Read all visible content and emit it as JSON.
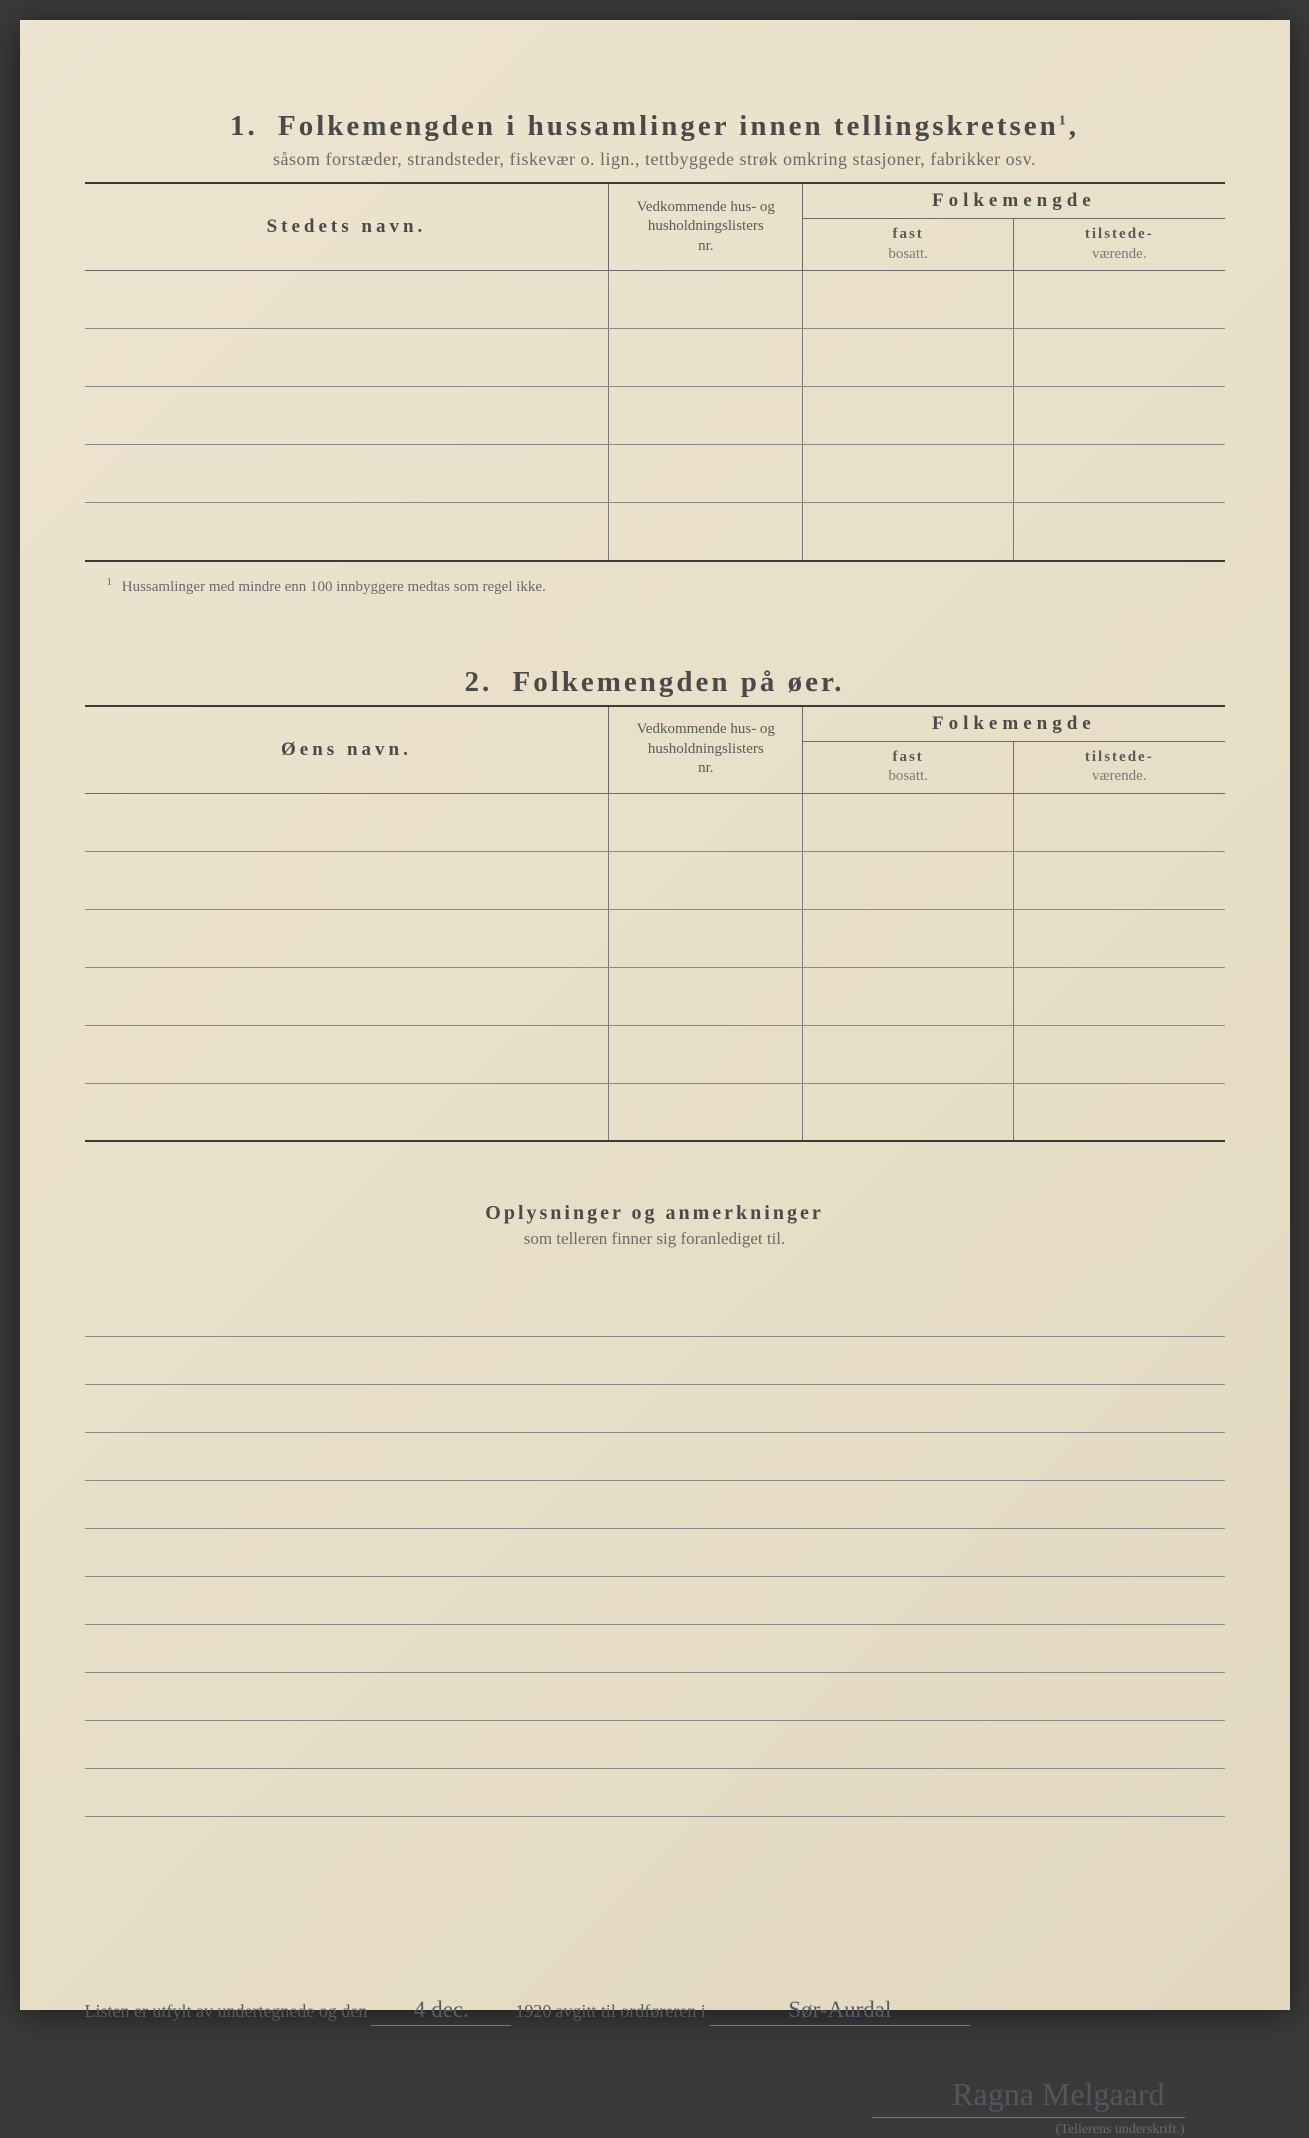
{
  "section1": {
    "number": "1.",
    "title": "Folkemengden i hussamlinger innen tellingskretsen",
    "title_sup": "1",
    "subtitle": "såsom forstæder, strandsteder, fiskevær o. lign., tettbyggede strøk omkring stasjoner, fabrikker osv.",
    "headers": {
      "name": "Stedets navn.",
      "nr_line1": "Vedkommende hus- og",
      "nr_line2": "husholdningslisters",
      "nr_line3": "nr.",
      "folk": "Folkemengde",
      "fast_bold": "fast",
      "fast_light": "bosatt.",
      "til_bold": "tilstede-",
      "til_light": "værende."
    },
    "rows": 5,
    "footnote_num": "1",
    "footnote": "Hussamlinger med mindre enn 100 innbyggere medtas som regel ikke."
  },
  "section2": {
    "number": "2.",
    "title": "Folkemengden på øer.",
    "headers": {
      "name": "Øens navn.",
      "nr_line1": "Vedkommende hus- og",
      "nr_line2": "husholdningslisters",
      "nr_line3": "nr.",
      "folk": "Folkemengde",
      "fast_bold": "fast",
      "fast_light": "bosatt.",
      "til_bold": "tilstede-",
      "til_light": "værende."
    },
    "rows": 6
  },
  "section3": {
    "title": "Oplysninger og anmerkninger",
    "subtitle": "som telleren finner sig foranlediget til.",
    "lines": 11
  },
  "signoff": {
    "pre": "Listen er utfylt av undertegnede og den",
    "date_written": "4 dec.",
    "year": "1920",
    "mid": "avgitt til ordføreren i",
    "place_written": "Sør-Aurdal",
    "signature": "Ragna Melgaard",
    "caption": "(Tellerens underskrift.)"
  },
  "colors": {
    "paper_bg": "#e8dfc8",
    "text_main": "#4a4a4a",
    "text_light": "#6a6a6a",
    "rule_heavy": "#3a3a3a",
    "rule_light": "#8a8a8a",
    "handwriting": "#5a5a6a"
  }
}
